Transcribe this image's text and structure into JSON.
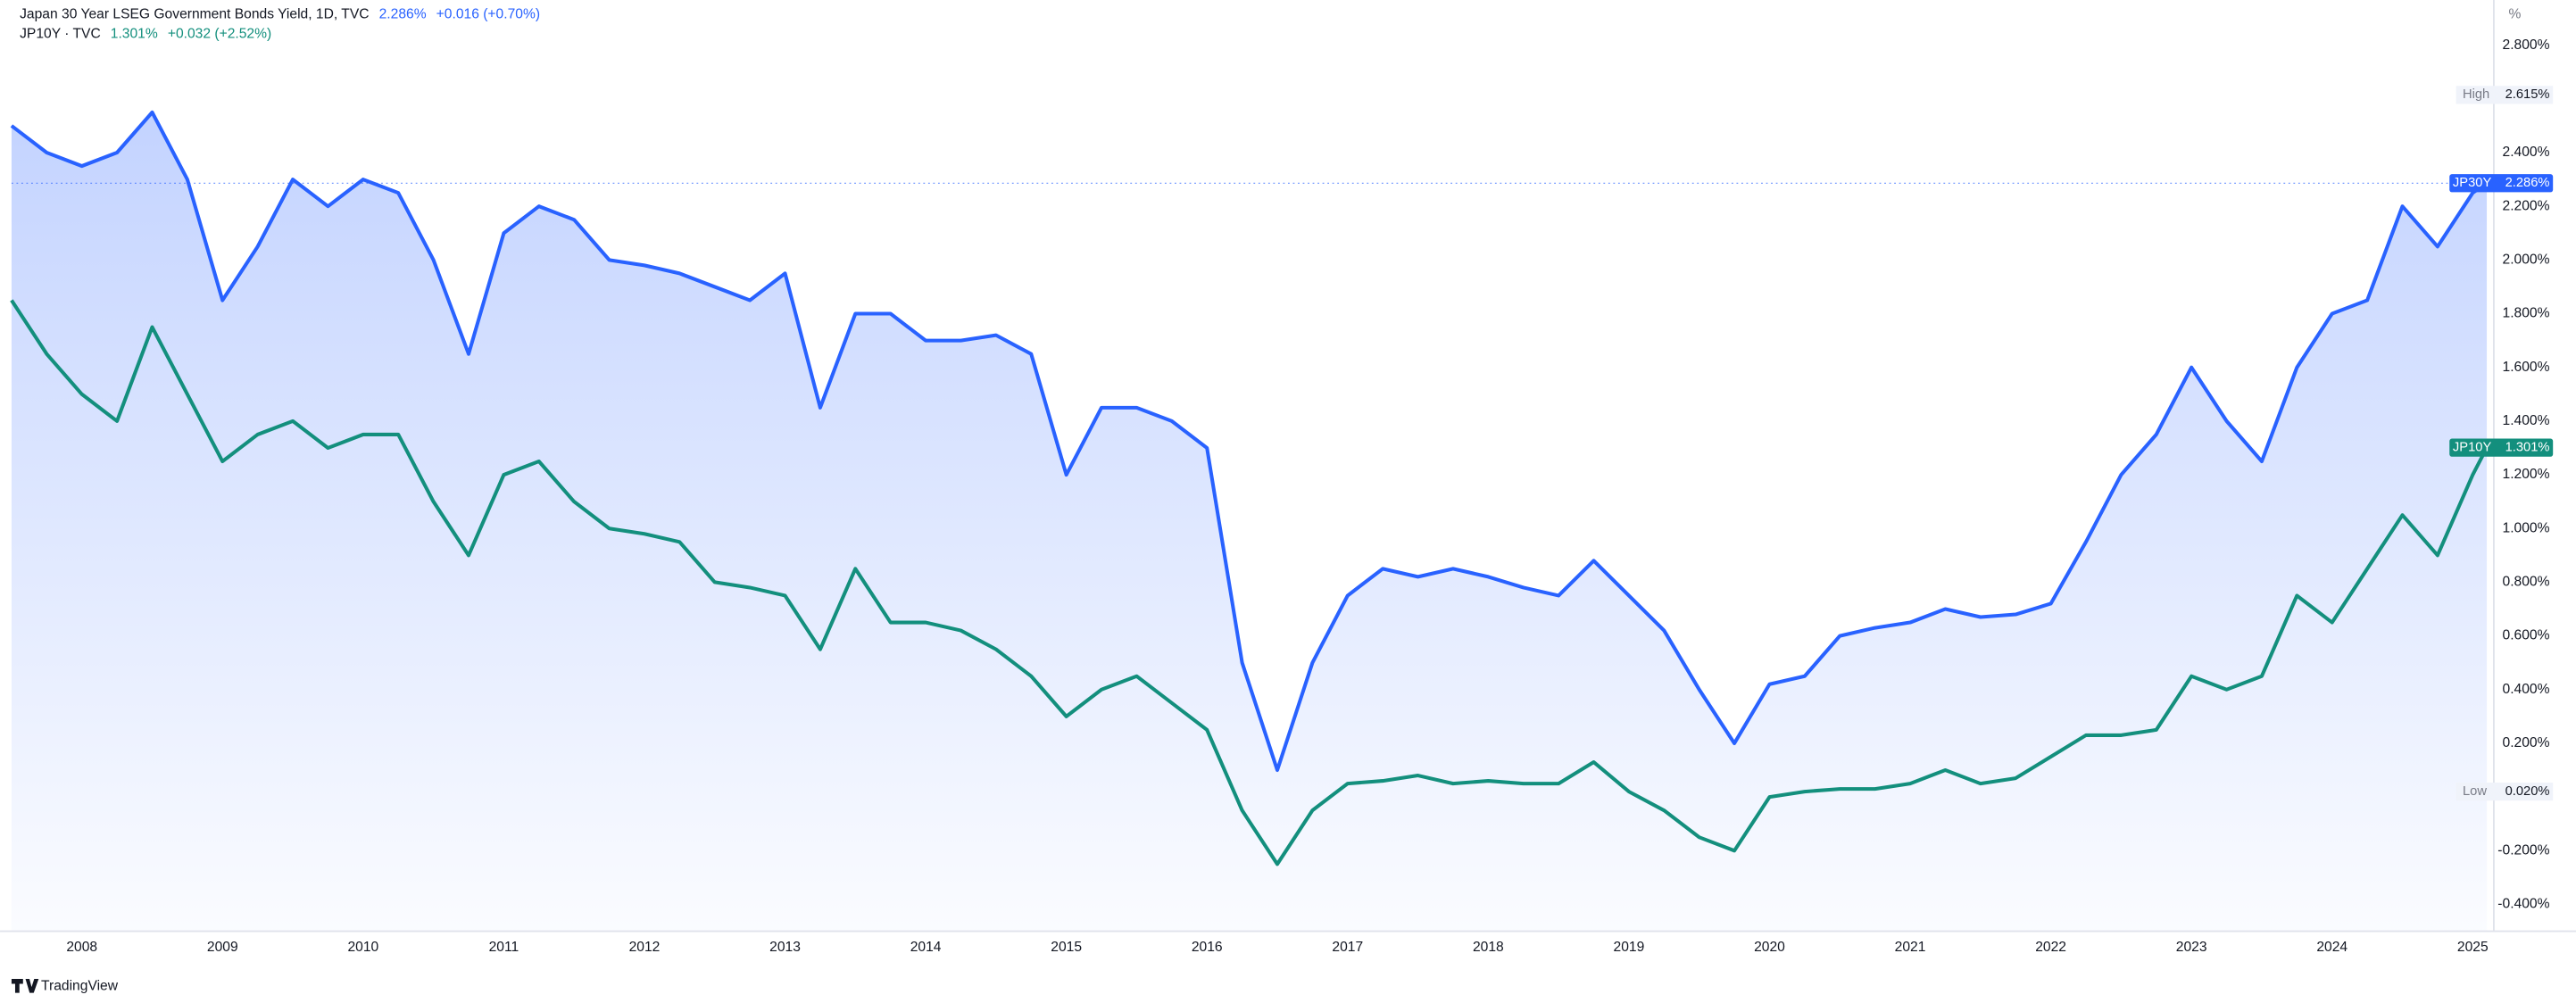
{
  "chart_data": {
    "type": "line",
    "unit": "%",
    "x": [
      2007.5,
      2007.75,
      2008.0,
      2008.25,
      2008.5,
      2008.75,
      2009.0,
      2009.25,
      2009.5,
      2009.75,
      2010.0,
      2010.25,
      2010.5,
      2010.75,
      2011.0,
      2011.25,
      2011.5,
      2011.75,
      2012.0,
      2012.25,
      2012.5,
      2012.75,
      2013.0,
      2013.25,
      2013.5,
      2013.75,
      2014.0,
      2014.25,
      2014.5,
      2014.75,
      2015.0,
      2015.25,
      2015.5,
      2015.75,
      2016.0,
      2016.25,
      2016.5,
      2016.75,
      2017.0,
      2017.25,
      2017.5,
      2017.75,
      2018.0,
      2018.25,
      2018.5,
      2018.75,
      2019.0,
      2019.25,
      2019.5,
      2019.75,
      2020.0,
      2020.25,
      2020.5,
      2020.75,
      2021.0,
      2021.25,
      2021.5,
      2021.75,
      2022.0,
      2022.25,
      2022.5,
      2022.75,
      2023.0,
      2023.25,
      2023.5,
      2023.75,
      2024.0,
      2024.25,
      2024.5,
      2024.75,
      2025.0,
      2025.1
    ],
    "series": [
      {
        "name": "JP30Y",
        "legend_label": "Japan 30 Year LSEG Government Bonds Yield, 1D, TVC",
        "last_label": "2.286%",
        "change": "+0.016 (+0.70%)",
        "color": "#2962ff",
        "values": [
          2.5,
          2.4,
          2.35,
          2.4,
          2.55,
          2.3,
          1.85,
          2.05,
          2.3,
          2.2,
          2.3,
          2.25,
          2.0,
          1.65,
          2.1,
          2.2,
          2.15,
          2.0,
          1.98,
          1.95,
          1.9,
          1.85,
          1.95,
          1.45,
          1.8,
          1.8,
          1.7,
          1.7,
          1.72,
          1.65,
          1.2,
          1.45,
          1.45,
          1.4,
          1.3,
          0.5,
          0.1,
          0.5,
          0.75,
          0.85,
          0.82,
          0.85,
          0.82,
          0.78,
          0.75,
          0.88,
          0.75,
          0.62,
          0.4,
          0.2,
          0.42,
          0.45,
          0.6,
          0.63,
          0.65,
          0.7,
          0.67,
          0.68,
          0.72,
          0.95,
          1.2,
          1.35,
          1.6,
          1.4,
          1.25,
          1.6,
          1.8,
          1.85,
          2.2,
          2.05,
          2.25,
          2.286
        ]
      },
      {
        "name": "JP10Y",
        "legend_label": "JP10Y · TVC",
        "last_label": "1.301%",
        "change": "+0.032 (+2.52%)",
        "color": "#138f7d",
        "values": [
          1.85,
          1.65,
          1.5,
          1.4,
          1.75,
          1.5,
          1.25,
          1.35,
          1.4,
          1.3,
          1.35,
          1.35,
          1.1,
          0.9,
          1.2,
          1.25,
          1.1,
          1.0,
          0.98,
          0.95,
          0.8,
          0.78,
          0.75,
          0.55,
          0.85,
          0.65,
          0.65,
          0.62,
          0.55,
          0.45,
          0.3,
          0.4,
          0.45,
          0.35,
          0.25,
          -0.05,
          -0.25,
          -0.05,
          0.05,
          0.06,
          0.08,
          0.05,
          0.06,
          0.05,
          0.05,
          0.13,
          0.02,
          -0.05,
          -0.15,
          -0.2,
          0.0,
          0.02,
          0.03,
          0.03,
          0.05,
          0.1,
          0.05,
          0.07,
          0.15,
          0.23,
          0.23,
          0.25,
          0.45,
          0.4,
          0.45,
          0.75,
          0.65,
          0.85,
          1.05,
          0.9,
          1.2,
          1.301
        ]
      }
    ],
    "xlim": [
      2007.5,
      2025.15
    ],
    "xticks": [
      2008,
      2009,
      2010,
      2011,
      2012,
      2013,
      2014,
      2015,
      2016,
      2017,
      2018,
      2019,
      2020,
      2021,
      2022,
      2023,
      2024,
      2025
    ],
    "ylim": [
      -0.5,
      2.95
    ],
    "yticks": [
      {
        "value": 2.8,
        "label": "2.800%"
      },
      {
        "value": 2.4,
        "label": "2.400%"
      },
      {
        "value": 2.2,
        "label": "2.200%"
      },
      {
        "value": 2.0,
        "label": "2.000%"
      },
      {
        "value": 1.8,
        "label": "1.800%"
      },
      {
        "value": 1.6,
        "label": "1.600%"
      },
      {
        "value": 1.4,
        "label": "1.400%"
      },
      {
        "value": 1.2,
        "label": "1.200%"
      },
      {
        "value": 1.0,
        "label": "1.000%"
      },
      {
        "value": 0.8,
        "label": "0.800%"
      },
      {
        "value": 0.6,
        "label": "0.600%"
      },
      {
        "value": 0.4,
        "label": "0.400%"
      },
      {
        "value": 0.2,
        "label": "0.200%"
      },
      {
        "value": -0.2,
        "label": "-0.200%"
      },
      {
        "value": -0.4,
        "label": "-0.400%"
      }
    ],
    "high": {
      "name": "High",
      "value": 2.615,
      "label": "2.615%"
    },
    "low": {
      "name": "Low",
      "value": 0.02,
      "label": "0.020%"
    },
    "grid": false,
    "branding": "TradingView"
  }
}
